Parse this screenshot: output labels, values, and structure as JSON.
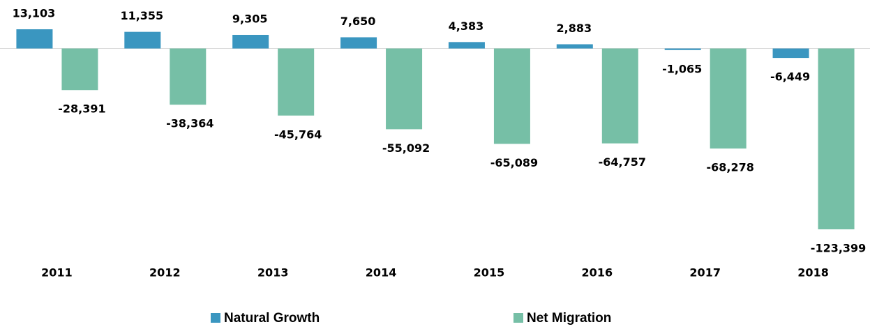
{
  "chart_data": {
    "type": "bar",
    "categories": [
      "2011",
      "2012",
      "2013",
      "2014",
      "2015",
      "2016",
      "2017",
      "2018"
    ],
    "series": [
      {
        "name": "Natural Growth",
        "color": "#3a96c0",
        "values": [
          13103,
          11355,
          9305,
          7650,
          4383,
          2883,
          -1065,
          -6449
        ],
        "value_labels": [
          "13,103",
          "11,355",
          "9,305",
          "7,650",
          "4,383",
          "2,883",
          "-1,065",
          "-6,449"
        ]
      },
      {
        "name": "Net Migration",
        "color": "#76bfa6",
        "values": [
          -28391,
          -38364,
          -45764,
          -55092,
          -65089,
          -64757,
          -68278,
          -123399
        ],
        "value_labels": [
          "-28,391",
          "-38,364",
          "-45,764",
          "-55,092",
          "-65,089",
          "-64,757",
          "-68,278",
          "-123,399"
        ]
      }
    ]
  }
}
